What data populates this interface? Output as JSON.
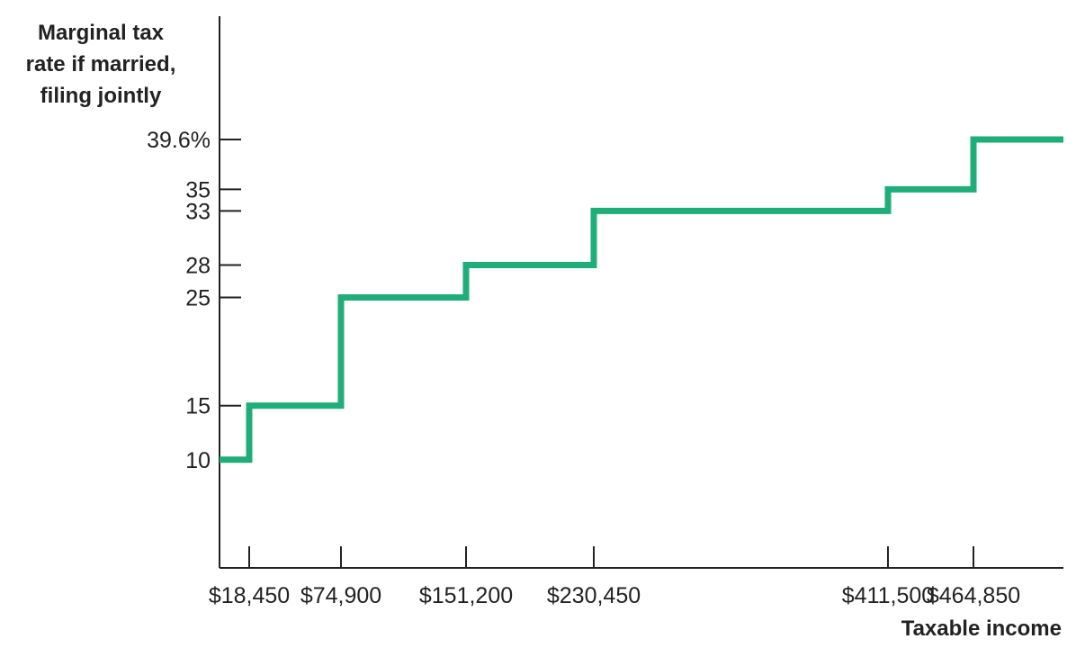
{
  "chart_data": {
    "type": "line",
    "subtype": "step",
    "ylabel_lines": [
      "Marginal tax",
      "rate if married,",
      "filing jointly"
    ],
    "xlabel": "Taxable income",
    "ytick_labels": [
      {
        "value": 39.6,
        "label": "39.6%"
      },
      {
        "value": 35,
        "label": "35"
      },
      {
        "value": 33,
        "label": "33"
      },
      {
        "value": 28,
        "label": "28"
      },
      {
        "value": 25,
        "label": "25"
      },
      {
        "value": 15,
        "label": "15"
      },
      {
        "value": 10,
        "label": "10"
      }
    ],
    "xtick_labels": [
      {
        "value": 18450,
        "label": "$18,450"
      },
      {
        "value": 74900,
        "label": "$74,900"
      },
      {
        "value": 151200,
        "label": "$151,200"
      },
      {
        "value": 230450,
        "label": "$230,450"
      },
      {
        "value": 411500,
        "label": "$411,500"
      },
      {
        "value": 464850,
        "label": "$464,850"
      }
    ],
    "series": [
      {
        "x": [
          0,
          18450,
          74900,
          151200,
          230450,
          411500,
          464850,
          520000
        ],
        "y": [
          10,
          15,
          25,
          28,
          33,
          35,
          39.6,
          39.6
        ]
      }
    ],
    "xlim": [
      0,
      520000
    ],
    "ylim": [
      0,
      51
    ],
    "line_color": "#1fae7a",
    "axis_color": "#222222",
    "grid": false,
    "legend": "none"
  }
}
